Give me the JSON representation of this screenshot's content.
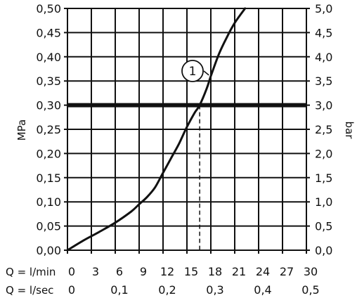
{
  "chart_data": {
    "type": "line",
    "title": "",
    "ylabel": "MPa",
    "ylabel_right": "bar",
    "xlim": [
      0,
      30
    ],
    "ylim": [
      0,
      0.5
    ],
    "grid": true,
    "y_ticks": [
      "0,00",
      "0,05",
      "0,10",
      "0,15",
      "0,20",
      "0,25",
      "0,30",
      "0,35",
      "0,40",
      "0,45",
      "0,50"
    ],
    "y_ticks_right": [
      "0,0",
      "0,5",
      "1,0",
      "1,5",
      "2,0",
      "2,5",
      "3,0",
      "3,5",
      "4,0",
      "4,5",
      "5,0"
    ],
    "x_axis_lmin": {
      "label": "Q = l/min",
      "ticks": [
        {
          "x": 0,
          "label": "0"
        },
        {
          "x": 3,
          "label": "3"
        },
        {
          "x": 6,
          "label": "6"
        },
        {
          "x": 9,
          "label": "9"
        },
        {
          "x": 12,
          "label": "12"
        },
        {
          "x": 15,
          "label": "15"
        },
        {
          "x": 18,
          "label": "18"
        },
        {
          "x": 21,
          "label": "21"
        },
        {
          "x": 24,
          "label": "24"
        },
        {
          "x": 27,
          "label": "27"
        },
        {
          "x": 30,
          "label": "30"
        }
      ]
    },
    "x_axis_lsec": {
      "label": "Q = l/sec",
      "ticks": [
        {
          "x": 0,
          "label": "0"
        },
        {
          "x": 6,
          "label": "0,1"
        },
        {
          "x": 12,
          "label": "0,2"
        },
        {
          "x": 18,
          "label": "0,3"
        },
        {
          "x": 24,
          "label": "0,4"
        },
        {
          "x": 30,
          "label": "0,5"
        }
      ]
    },
    "series": [
      {
        "label": "1",
        "x": [
          0,
          2,
          4,
          6,
          8,
          9,
          10,
          11,
          12,
          13,
          14,
          15,
          16,
          16.6,
          17.5,
          18,
          19,
          20,
          21,
          22.3
        ],
        "y": [
          0,
          0.02,
          0.038,
          0.057,
          0.08,
          0.095,
          0.11,
          0.13,
          0.16,
          0.19,
          0.22,
          0.255,
          0.285,
          0.3,
          0.335,
          0.36,
          0.405,
          0.44,
          0.47,
          0.5
        ]
      }
    ],
    "reference_line": {
      "y": 0.3
    },
    "marker": {
      "x": 16.6,
      "y": 0.3
    }
  }
}
